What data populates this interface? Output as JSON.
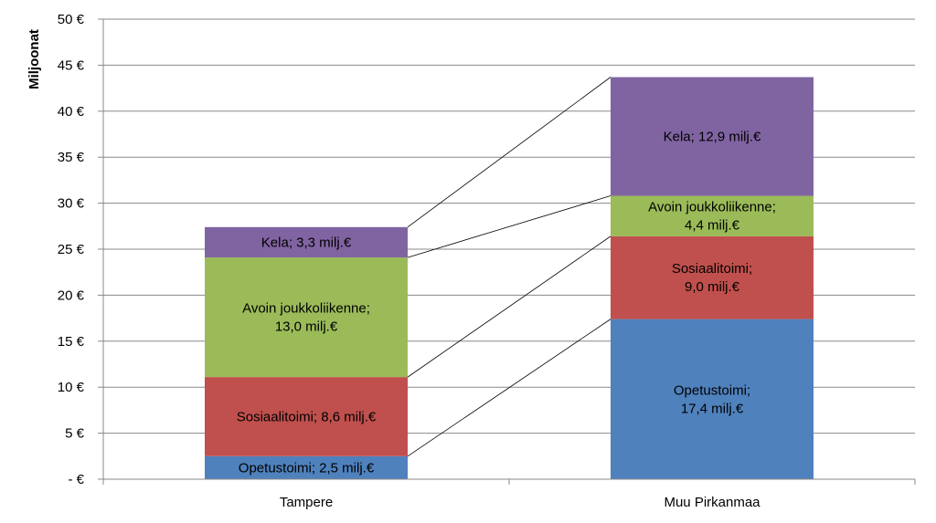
{
  "chart_data": {
    "type": "bar",
    "stacked": true,
    "ylabel": "Miljoonat",
    "ylim": [
      0,
      50
    ],
    "y_ticks": [
      "-  €",
      "5 €",
      "10 €",
      "15 €",
      "20 €",
      "25 €",
      "30 €",
      "35 €",
      "40 €",
      "45 €",
      "50 €"
    ],
    "grid": true,
    "categories": [
      "Tampere",
      "Muu Pirkanmaa"
    ],
    "series": [
      {
        "name": "Opetustoimi",
        "color": "#4F81BD",
        "values": [
          2.5,
          17.4
        ],
        "labels": [
          [
            "Opetustoimi;  2,5 milj.€"
          ],
          [
            "Opetustoimi;",
            "17,4 milj.€"
          ]
        ]
      },
      {
        "name": "Sosiaalitoimi",
        "color": "#C0504D",
        "values": [
          8.6,
          9.0
        ],
        "labels": [
          [
            "Sosiaalitoimi;  8,6 milj.€"
          ],
          [
            "Sosiaalitoimi;",
            "9,0 milj.€"
          ]
        ]
      },
      {
        "name": "Avoin joukkoliikenne",
        "color": "#9BBB59",
        "values": [
          13.0,
          4.4
        ],
        "labels": [
          [
            "Avoin joukkoliikenne;",
            "13,0 milj.€"
          ],
          [
            "Avoin joukkoliikenne;",
            "4,4 milj.€"
          ]
        ]
      },
      {
        "name": "Kela",
        "color": "#8064A2",
        "values": [
          3.3,
          12.9
        ],
        "labels": [
          [
            "Kela;  3,3 milj.€"
          ],
          [
            "Kela;  12,9 milj.€"
          ]
        ]
      }
    ]
  }
}
